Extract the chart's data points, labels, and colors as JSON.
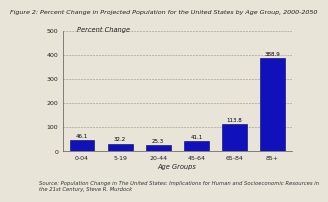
{
  "title": "Figure 2: Percent Change in Projected Population for the United States by Age Group, 2000-2050",
  "ylabel_text": "Percent Change",
  "xlabel": "Age Groups",
  "categories": [
    "0-04",
    "5-19",
    "20-44",
    "45-64",
    "65-84",
    "85+"
  ],
  "values": [
    46.1,
    32.2,
    25.3,
    41.1,
    113.8,
    388.9
  ],
  "bar_color": "#1111BB",
  "bar_edge_color": "#000066",
  "ylim": [
    0,
    500
  ],
  "yticks": [
    0,
    100,
    200,
    300,
    400,
    500
  ],
  "background_color": "#E8E4D8",
  "plot_bg_color": "#E8E4D8",
  "source_text": "Source: Population Change in The United States: Implications for Human and Socioeconomic Resources in\nthe 21st Century, Steve R. Murdock",
  "title_fontsize": 4.6,
  "label_fontsize": 4.8,
  "tick_fontsize": 4.5,
  "value_fontsize": 4.0,
  "source_fontsize": 3.8
}
